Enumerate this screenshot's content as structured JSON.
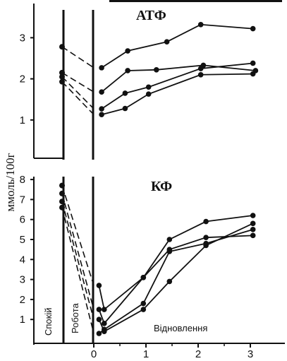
{
  "chart_data": [
    {
      "type": "line",
      "title": "АТФ",
      "ylabel": "ммоль/100г",
      "xlabel": "",
      "ylim": [
        0.3,
        3.6
      ],
      "yticks": [
        "1",
        "2",
        "3"
      ],
      "series": [
        {
          "rest": 2.78,
          "post": 2.27,
          "x": [
            0.15,
            0.65,
            1.4,
            2.05,
            3.05
          ],
          "values": [
            2.27,
            2.68,
            2.9,
            3.32,
            3.22
          ]
        },
        {
          "rest": 2.15,
          "post": 1.68,
          "x": [
            0.15,
            0.65,
            1.2,
            2.1,
            3.1
          ],
          "values": [
            1.68,
            2.2,
            2.22,
            2.33,
            2.2
          ]
        },
        {
          "rest": 2.05,
          "post": 1.27,
          "x": [
            0.15,
            0.6,
            1.05,
            2.05,
            3.05
          ],
          "values": [
            1.27,
            1.65,
            1.8,
            2.25,
            2.38
          ]
        },
        {
          "rest": 1.93,
          "post": 1.13,
          "x": [
            0.15,
            0.6,
            1.05,
            2.05,
            3.05
          ],
          "values": [
            1.13,
            1.28,
            1.63,
            2.1,
            2.12
          ]
        }
      ]
    },
    {
      "type": "line",
      "title": "КФ",
      "ylabel": "",
      "xlabel": "",
      "xlim": [
        -1.1,
        3.3
      ],
      "ylim": [
        -0.2,
        8.2
      ],
      "xticks": [
        "0",
        "1",
        "2",
        "3"
      ],
      "yticks": [
        "1",
        "2",
        "3",
        "4",
        "5",
        "6",
        "7",
        "8"
      ],
      "phase_labels": {
        "rest": "Спокій",
        "work": "Робота",
        "recovery": "Відновлення"
      },
      "series": [
        {
          "rest": 7.7,
          "post": 2.7,
          "x": [
            0.1,
            0.2,
            0.95,
            1.45,
            2.15,
            3.05
          ],
          "values": [
            2.7,
            1.5,
            3.1,
            5.0,
            5.9,
            6.2
          ]
        },
        {
          "rest": 7.3,
          "post": 1.5,
          "x": [
            0.1,
            0.2,
            0.95,
            1.45,
            2.15,
            3.05
          ],
          "values": [
            1.5,
            0.8,
            3.1,
            4.5,
            5.1,
            5.2
          ]
        },
        {
          "rest": 6.9,
          "post": 1.0,
          "x": [
            0.1,
            0.2,
            0.95,
            1.45,
            2.15,
            3.05
          ],
          "values": [
            1.0,
            0.4,
            1.5,
            2.9,
            4.7,
            5.8
          ]
        },
        {
          "rest": 6.6,
          "post": 0.3,
          "x": [
            0.1,
            0.2,
            0.95,
            1.45,
            2.15,
            3.05
          ],
          "values": [
            0.3,
            0.5,
            1.8,
            4.4,
            4.8,
            5.5
          ]
        }
      ]
    }
  ]
}
